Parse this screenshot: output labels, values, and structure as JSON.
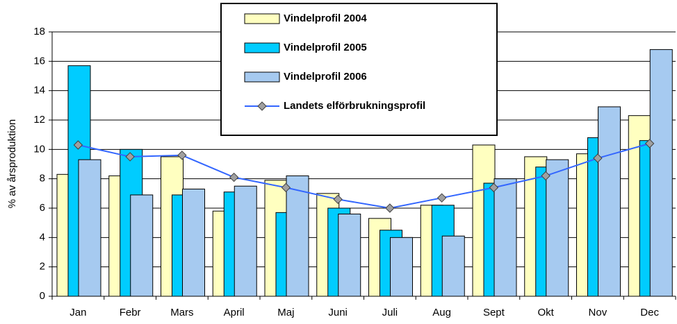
{
  "chart_data": {
    "type": "bar",
    "y_label": "% av årsproduktion",
    "categories": [
      "Jan",
      "Febr",
      "Mars",
      "April",
      "Maj",
      "Juni",
      "Juli",
      "Aug",
      "Sept",
      "Okt",
      "Nov",
      "Dec"
    ],
    "series": [
      {
        "name": "Vindelprofil 2004",
        "type": "bar",
        "color": "#ffffc0",
        "values": [
          8.3,
          8.2,
          9.5,
          5.8,
          7.9,
          7.0,
          5.3,
          6.2,
          10.3,
          9.5,
          9.7,
          12.3
        ]
      },
      {
        "name": "Vindelprofil 2005",
        "type": "bar",
        "color": "#00ccff",
        "values": [
          15.7,
          10.0,
          6.9,
          7.1,
          5.7,
          6.0,
          4.5,
          6.2,
          7.7,
          8.8,
          10.8,
          10.6
        ]
      },
      {
        "name": "Vindelprofil 2006",
        "type": "bar",
        "color": "#a6caf0",
        "values": [
          9.3,
          6.9,
          7.3,
          7.5,
          8.2,
          5.6,
          4.0,
          4.1,
          8.0,
          9.3,
          12.9,
          16.8
        ]
      },
      {
        "name": "Landets elförbrukningsprofil",
        "type": "line",
        "color": "#3366ff",
        "values": [
          10.3,
          9.5,
          9.6,
          8.1,
          7.4,
          6.6,
          6.0,
          6.7,
          7.4,
          8.2,
          9.4,
          10.4
        ]
      }
    ],
    "ylim": [
      0,
      18
    ],
    "yticks": [
      0,
      2,
      4,
      6,
      8,
      10,
      12,
      14,
      16,
      18
    ],
    "grid": true,
    "legend": "top"
  }
}
